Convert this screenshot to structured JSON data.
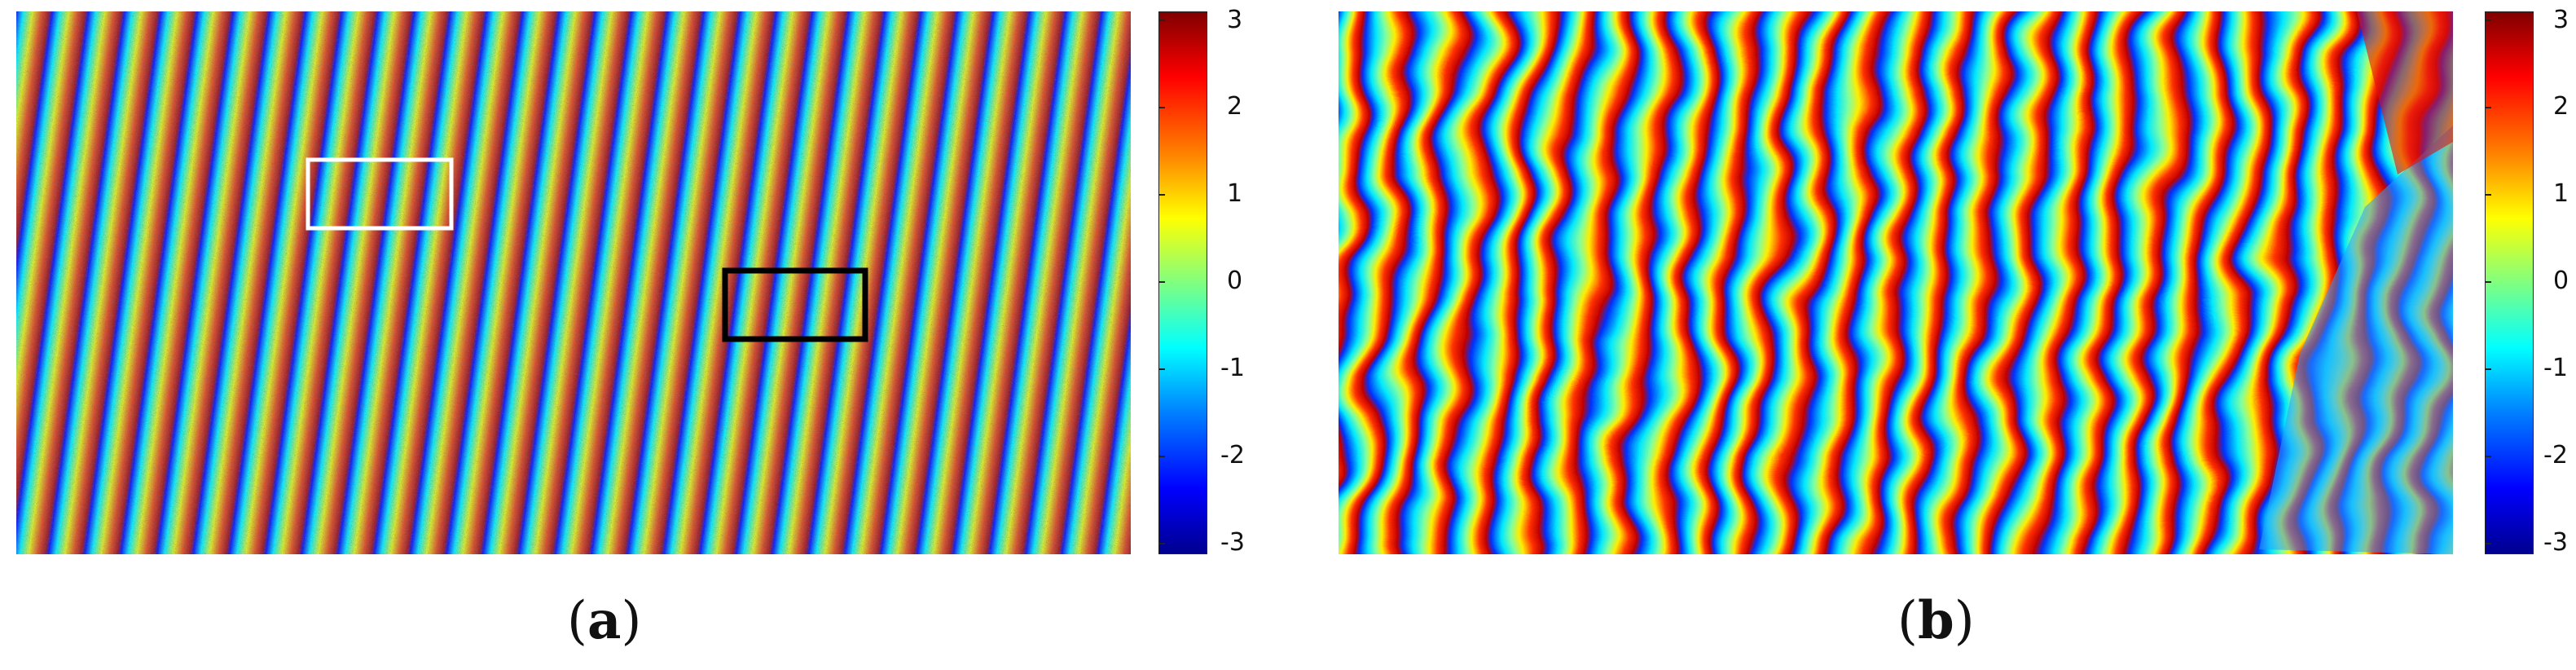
{
  "colorbar": {
    "ticks": [
      "3",
      "2",
      "1",
      "0",
      "-1",
      "-2",
      "-3"
    ],
    "colormap": "jet",
    "colors": [
      "#00008f",
      "#0000ff",
      "#0080ff",
      "#00ffff",
      "#80ff80",
      "#ffff00",
      "#ff8000",
      "#ff0000",
      "#800000"
    ]
  },
  "panels": [
    {
      "id": "a",
      "label_open": "(",
      "label_letter": "a",
      "label_close": ")",
      "description_icon": "noisy-interferogram-image",
      "boxes": [
        {
          "name": "white-box",
          "color": "#ffffff"
        },
        {
          "name": "black-box",
          "color": "#000000"
        }
      ]
    },
    {
      "id": "b",
      "label_open": "(",
      "label_letter": "b",
      "label_close": ")",
      "description_icon": "filtered-interferogram-image"
    }
  ]
}
